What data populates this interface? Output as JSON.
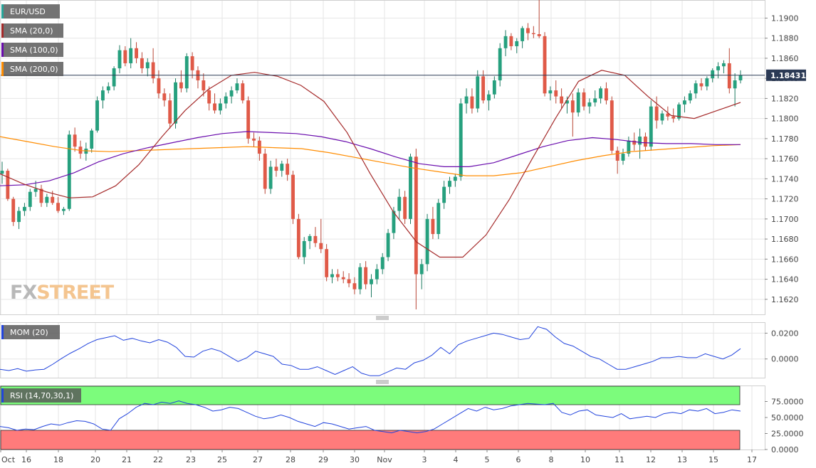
{
  "chart_data": [
    {
      "type": "candlestick",
      "legend": [
        {
          "label": "EUR/USD",
          "color": "#26a69a"
        },
        {
          "label": "SMA (20,0)",
          "color": "#a52a2a"
        },
        {
          "label": "SMA (100,0)",
          "color": "#6a0dad"
        },
        {
          "label": "SMA (200,0)",
          "color": "#ff8c00"
        }
      ],
      "last_price_label": "1.18431",
      "last_price": 1.18431,
      "y_ticks": [
        "1.1900",
        "1.1880",
        "1.1860",
        "1.1840",
        "1.1820",
        "1.1800",
        "1.1780",
        "1.1760",
        "1.1740",
        "1.1720",
        "1.1700",
        "1.1680",
        "1.1660",
        "1.1640",
        "1.1620"
      ],
      "ylim": [
        1.1605,
        1.1918
      ],
      "x_tick_labels": [
        "Oct",
        "16",
        "18",
        "20",
        "21",
        "22",
        "23",
        "25",
        "27",
        "28",
        "29",
        "30",
        "Nov",
        "3",
        "4",
        "5",
        "6",
        "8",
        "10",
        "11",
        "12",
        "13",
        "15",
        "17"
      ],
      "series": [
        {
          "name": "SMA (20,0)",
          "color": "#a52a2a",
          "values": [
            1.1745,
            1.1735,
            1.1727,
            1.1721,
            1.1722,
            1.1733,
            1.1754,
            1.1782,
            1.1808,
            1.1829,
            1.1843,
            1.1846,
            1.1842,
            1.1833,
            1.1817,
            1.1786,
            1.1745,
            1.1707,
            1.1677,
            1.1662,
            1.1662,
            1.1684,
            1.1719,
            1.176,
            1.18,
            1.1837,
            1.1848,
            1.1843,
            1.1822,
            1.1803,
            1.18,
            1.1808,
            1.1816
          ]
        },
        {
          "name": "SMA (100,0)",
          "color": "#6a0dad",
          "values": [
            1.1733,
            1.1734,
            1.1738,
            1.1746,
            1.1757,
            1.1765,
            1.1771,
            1.1776,
            1.1781,
            1.1785,
            1.1787,
            1.1786,
            1.1785,
            1.1782,
            1.1777,
            1.177,
            1.1762,
            1.1755,
            1.1752,
            1.1752,
            1.1756,
            1.1764,
            1.1772,
            1.1778,
            1.1781,
            1.1779,
            1.1776,
            1.1775,
            1.1775,
            1.1774,
            1.1774
          ]
        },
        {
          "name": "SMA (200,0)",
          "color": "#ff8c00",
          "values": [
            1.1782,
            1.1777,
            1.1772,
            1.1768,
            1.1767,
            1.1768,
            1.1769,
            1.177,
            1.1771,
            1.1772,
            1.1771,
            1.177,
            1.1766,
            1.1761,
            1.1756,
            1.1751,
            1.1747,
            1.1743,
            1.1743,
            1.1746,
            1.1752,
            1.1758,
            1.1763,
            1.1767,
            1.1769,
            1.1771,
            1.1773,
            1.1774
          ]
        }
      ],
      "candles": [
        [
          1.1745,
          1.1757,
          1.1735,
          1.1748
        ],
        [
          1.1748,
          1.175,
          1.1718,
          1.172
        ],
        [
          1.172,
          1.1722,
          1.1693,
          1.1697
        ],
        [
          1.1697,
          1.1712,
          1.169,
          1.1708
        ],
        [
          1.1708,
          1.1716,
          1.1703,
          1.1712
        ],
        [
          1.1712,
          1.173,
          1.1708,
          1.1727
        ],
        [
          1.1727,
          1.1738,
          1.1722,
          1.173
        ],
        [
          1.173,
          1.1734,
          1.1712,
          1.1716
        ],
        [
          1.1716,
          1.1725,
          1.1712,
          1.1722
        ],
        [
          1.1722,
          1.1728,
          1.1714,
          1.1716
        ],
        [
          1.1716,
          1.1722,
          1.1706,
          1.1708
        ],
        [
          1.1708,
          1.1712,
          1.1704,
          1.171
        ],
        [
          1.171,
          1.1788,
          1.1708,
          1.1784
        ],
        [
          1.1784,
          1.1791,
          1.1767,
          1.1772
        ],
        [
          1.1772,
          1.1778,
          1.176,
          1.1765
        ],
        [
          1.1765,
          1.1776,
          1.1758,
          1.177
        ],
        [
          1.177,
          1.179,
          1.1766,
          1.1788
        ],
        [
          1.1788,
          1.1822,
          1.1786,
          1.1818
        ],
        [
          1.1818,
          1.1832,
          1.181,
          1.1828
        ],
        [
          1.1828,
          1.1836,
          1.1825,
          1.1832
        ],
        [
          1.1832,
          1.1852,
          1.1828,
          1.185
        ],
        [
          1.185,
          1.1873,
          1.1845,
          1.1868
        ],
        [
          1.1868,
          1.1872,
          1.1852,
          1.1855
        ],
        [
          1.1855,
          1.188,
          1.185,
          1.187
        ],
        [
          1.187,
          1.1876,
          1.1855,
          1.186
        ],
        [
          1.186,
          1.1866,
          1.1845,
          1.185
        ],
        [
          1.185,
          1.186,
          1.1842,
          1.1856
        ],
        [
          1.1856,
          1.187,
          1.1835,
          1.184
        ],
        [
          1.184,
          1.1848,
          1.182,
          1.1825
        ],
        [
          1.1825,
          1.183,
          1.1812,
          1.1818
        ],
        [
          1.1818,
          1.1825,
          1.179,
          1.1795
        ],
        [
          1.1795,
          1.184,
          1.179,
          1.1836
        ],
        [
          1.1836,
          1.1848,
          1.1826,
          1.183
        ],
        [
          1.183,
          1.1865,
          1.1826,
          1.1862
        ],
        [
          1.1862,
          1.1866,
          1.184,
          1.1848
        ],
        [
          1.1848,
          1.1852,
          1.183,
          1.1838
        ],
        [
          1.1838,
          1.1845,
          1.1822,
          1.1828
        ],
        [
          1.1828,
          1.1832,
          1.1808,
          1.1815
        ],
        [
          1.1815,
          1.1825,
          1.1805,
          1.1808
        ],
        [
          1.1808,
          1.182,
          1.1804,
          1.1815
        ],
        [
          1.1815,
          1.1826,
          1.181,
          1.1822
        ],
        [
          1.1822,
          1.1832,
          1.1815,
          1.1828
        ],
        [
          1.1828,
          1.184,
          1.1825,
          1.1835
        ],
        [
          1.1835,
          1.1838,
          1.1815,
          1.1818
        ],
        [
          1.1818,
          1.1822,
          1.1775,
          1.178
        ],
        [
          1.178,
          1.1786,
          1.1772,
          1.1778
        ],
        [
          1.1778,
          1.1782,
          1.1758,
          1.1765
        ],
        [
          1.1765,
          1.177,
          1.1725,
          1.173
        ],
        [
          1.173,
          1.1758,
          1.1725,
          1.1752
        ],
        [
          1.1752,
          1.176,
          1.1742,
          1.1748
        ],
        [
          1.1748,
          1.1758,
          1.1742,
          1.1755
        ],
        [
          1.1755,
          1.176,
          1.1738,
          1.1744
        ],
        [
          1.1744,
          1.1748,
          1.1695,
          1.17
        ],
        [
          1.17,
          1.1705,
          1.166,
          1.1662
        ],
        [
          1.1662,
          1.1682,
          1.1655,
          1.1678
        ],
        [
          1.1678,
          1.1685,
          1.167,
          1.1683
        ],
        [
          1.1683,
          1.1692,
          1.1672,
          1.1676
        ],
        [
          1.1676,
          1.17,
          1.1666,
          1.167
        ],
        [
          1.167,
          1.1675,
          1.1638,
          1.1642
        ],
        [
          1.1642,
          1.165,
          1.1636,
          1.1645
        ],
        [
          1.1645,
          1.165,
          1.1638,
          1.1642
        ],
        [
          1.1642,
          1.1648,
          1.1636,
          1.164
        ],
        [
          1.164,
          1.1646,
          1.1632,
          1.1636
        ],
        [
          1.1636,
          1.1642,
          1.1625,
          1.163
        ],
        [
          1.163,
          1.1656,
          1.1625,
          1.1652
        ],
        [
          1.1652,
          1.1658,
          1.163,
          1.1635
        ],
        [
          1.1635,
          1.1645,
          1.1622,
          1.164
        ],
        [
          1.164,
          1.1655,
          1.1635,
          1.165
        ],
        [
          1.165,
          1.1666,
          1.1645,
          1.1662
        ],
        [
          1.1662,
          1.169,
          1.1658,
          1.1686
        ],
        [
          1.1686,
          1.1712,
          1.168,
          1.1708
        ],
        [
          1.1708,
          1.173,
          1.17,
          1.1722
        ],
        [
          1.1722,
          1.1728,
          1.1695,
          1.17
        ],
        [
          1.17,
          1.1765,
          1.1695,
          1.1762
        ],
        [
          1.1762,
          1.177,
          1.161,
          1.1645
        ],
        [
          1.1645,
          1.166,
          1.163,
          1.1655
        ],
        [
          1.1655,
          1.1705,
          1.1648,
          1.17
        ],
        [
          1.17,
          1.1712,
          1.168,
          1.1685
        ],
        [
          1.1685,
          1.172,
          1.168,
          1.1716
        ],
        [
          1.1716,
          1.1738,
          1.171,
          1.1732
        ],
        [
          1.1732,
          1.1742,
          1.1725,
          1.1738
        ],
        [
          1.1738,
          1.1745,
          1.1732,
          1.1742
        ],
        [
          1.1742,
          1.182,
          1.1738,
          1.1815
        ],
        [
          1.1815,
          1.183,
          1.1805,
          1.1822
        ],
        [
          1.1822,
          1.183,
          1.1805,
          1.181
        ],
        [
          1.181,
          1.1848,
          1.1806,
          1.1842
        ],
        [
          1.1842,
          1.1848,
          1.1815,
          1.1818
        ],
        [
          1.1818,
          1.1828,
          1.1808,
          1.1824
        ],
        [
          1.1824,
          1.1842,
          1.182,
          1.1838
        ],
        [
          1.1838,
          1.1875,
          1.1832,
          1.187
        ],
        [
          1.187,
          1.1888,
          1.1862,
          1.1882
        ],
        [
          1.1882,
          1.1885,
          1.1868,
          1.1872
        ],
        [
          1.1872,
          1.188,
          1.1865,
          1.1877
        ],
        [
          1.1877,
          1.1892,
          1.187,
          1.189
        ],
        [
          1.189,
          1.1895,
          1.1878,
          1.1885
        ],
        [
          1.1885,
          1.1892,
          1.188,
          1.1884
        ],
        [
          1.1884,
          1.1918,
          1.188,
          1.1882
        ],
        [
          1.1882,
          1.1886,
          1.1822,
          1.1825
        ],
        [
          1.1825,
          1.1832,
          1.1818,
          1.1828
        ],
        [
          1.1828,
          1.1838,
          1.1815,
          1.1822
        ],
        [
          1.1822,
          1.183,
          1.181,
          1.1815
        ],
        [
          1.1815,
          1.1822,
          1.1805,
          1.1818
        ],
        [
          1.1818,
          1.1825,
          1.1782,
          1.1806
        ],
        [
          1.1806,
          1.183,
          1.1802,
          1.1826
        ],
        [
          1.1826,
          1.183,
          1.1808,
          1.1812
        ],
        [
          1.1812,
          1.182,
          1.1805,
          1.1816
        ],
        [
          1.1816,
          1.1828,
          1.1812,
          1.182
        ],
        [
          1.182,
          1.1832,
          1.1815,
          1.183
        ],
        [
          1.183,
          1.1836,
          1.1814,
          1.1818
        ],
        [
          1.1818,
          1.1822,
          1.1765,
          1.1768
        ],
        [
          1.1768,
          1.1772,
          1.1745,
          1.1758
        ],
        [
          1.1758,
          1.177,
          1.1754,
          1.1765
        ],
        [
          1.1765,
          1.1782,
          1.1762,
          1.1778
        ],
        [
          1.1778,
          1.1786,
          1.1768,
          1.1774
        ],
        [
          1.1774,
          1.179,
          1.176,
          1.1782
        ],
        [
          1.1782,
          1.1786,
          1.1768,
          1.1772
        ],
        [
          1.1772,
          1.1818,
          1.1768,
          1.1812
        ],
        [
          1.1812,
          1.1822,
          1.179,
          1.1798
        ],
        [
          1.1798,
          1.1808,
          1.1794,
          1.1805
        ],
        [
          1.1805,
          1.1812,
          1.1798,
          1.1802
        ],
        [
          1.1802,
          1.181,
          1.1796,
          1.18
        ],
        [
          1.18,
          1.1816,
          1.1798,
          1.1814
        ],
        [
          1.1814,
          1.1822,
          1.1806,
          1.1818
        ],
        [
          1.1818,
          1.1828,
          1.1815,
          1.1825
        ],
        [
          1.1825,
          1.1838,
          1.182,
          1.1835
        ],
        [
          1.1835,
          1.184,
          1.1828,
          1.1832
        ],
        [
          1.1832,
          1.1842,
          1.1828,
          1.184
        ],
        [
          1.184,
          1.185,
          1.1836,
          1.1848
        ],
        [
          1.1848,
          1.1856,
          1.184,
          1.1852
        ],
        [
          1.1852,
          1.1858,
          1.1845,
          1.1855
        ],
        [
          1.1855,
          1.187,
          1.1825,
          1.183
        ],
        [
          1.183,
          1.1845,
          1.1812,
          1.1838
        ],
        [
          1.1838,
          1.1848,
          1.1835,
          1.1843
        ]
      ]
    },
    {
      "type": "line",
      "legend": "MOM (20)",
      "y_ticks": [
        "0.0200",
        "0.0000"
      ],
      "ylim": [
        -0.0145,
        0.0285
      ],
      "series": [
        {
          "name": "MOM (20)",
          "color": "#2244dd",
          "values": [
            -0.008,
            -0.009,
            -0.0075,
            -0.0095,
            -0.0085,
            -0.008,
            -0.004,
            0.0005,
            0.0045,
            0.008,
            0.012,
            0.015,
            0.0165,
            0.018,
            0.0145,
            0.016,
            0.014,
            0.0125,
            0.015,
            0.013,
            0.009,
            0.002,
            0.0015,
            0.006,
            0.008,
            0.006,
            0.002,
            -0.002,
            0.001,
            0.006,
            0.004,
            0.002,
            -0.004,
            -0.005,
            -0.008,
            -0.008,
            -0.006,
            -0.009,
            -0.012,
            -0.009,
            -0.006,
            -0.011,
            -0.013,
            -0.013,
            -0.01,
            -0.007,
            -0.008,
            -0.003,
            -0.001,
            0.003,
            0.009,
            0.004,
            0.011,
            0.014,
            0.016,
            0.018,
            0.02,
            0.019,
            0.017,
            0.015,
            0.016,
            0.025,
            0.023,
            0.017,
            0.012,
            0.01,
            0.006,
            0.002,
            0.0,
            -0.004,
            -0.008,
            -0.008,
            -0.006,
            -0.004,
            -0.002,
            0.001,
            0.001,
            0.002,
            0.001,
            0.001,
            0.004,
            0.002,
            0.0,
            0.003,
            0.008
          ]
        }
      ]
    },
    {
      "type": "line",
      "legend": "RSI (14,70,30,1)",
      "y_ticks": [
        "75.0000",
        "50.0000",
        "25.0000",
        "0.0000"
      ],
      "ylim": [
        0,
        100
      ],
      "overbought": 70,
      "oversold": 30,
      "band_colors": {
        "overbought": "#7cfc7c",
        "oversold": "#ff7b7b"
      },
      "series": [
        {
          "name": "RSI (14,70,30,1)",
          "color": "#2244dd",
          "values": [
            36,
            34,
            30,
            32,
            31,
            36,
            40,
            38,
            42,
            45,
            44,
            40,
            32,
            30,
            48,
            56,
            66,
            72,
            70,
            74,
            72,
            76,
            72,
            70,
            66,
            60,
            62,
            66,
            64,
            58,
            52,
            48,
            50,
            54,
            50,
            44,
            40,
            36,
            42,
            40,
            36,
            32,
            34,
            36,
            30,
            28,
            26,
            30,
            28,
            26,
            28,
            32,
            40,
            48,
            56,
            64,
            60,
            66,
            62,
            64,
            68,
            70,
            72,
            71,
            70,
            72,
            58,
            54,
            60,
            62,
            54,
            52,
            50,
            56,
            48,
            50,
            52,
            50,
            56,
            58,
            56,
            62,
            60,
            64,
            56,
            58,
            62,
            60
          ]
        }
      ]
    }
  ],
  "branding": {
    "watermark": "FXSTREET"
  }
}
